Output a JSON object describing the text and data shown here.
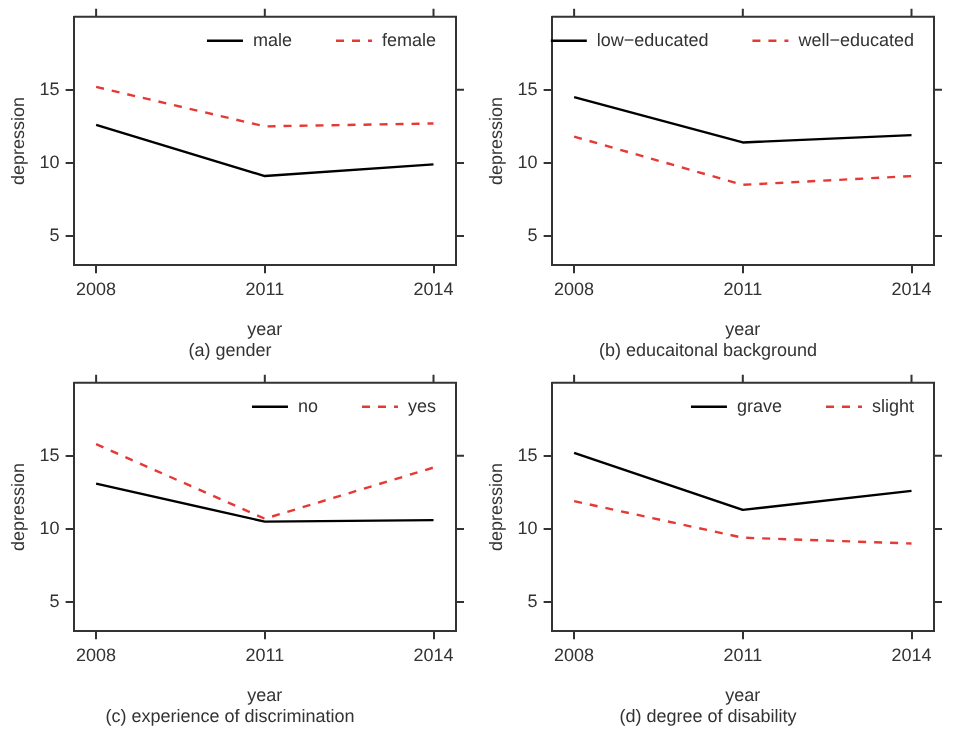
{
  "chart_data": [
    {
      "type": "line",
      "subtitle": "(a) gender",
      "xlabel": "year",
      "ylabel": "depression",
      "x": [
        2008,
        2011,
        2014
      ],
      "xlim": [
        2007.6,
        2014.4
      ],
      "xticks": [
        2008,
        2011,
        2014
      ],
      "ylim": [
        3,
        20
      ],
      "yticks": [
        5,
        10,
        15
      ],
      "legend": "top right",
      "grid": false,
      "series": [
        {
          "name": "male",
          "color": "#000000",
          "line_style": "solid",
          "values": [
            12.6,
            9.1,
            9.9
          ]
        },
        {
          "name": "female",
          "color": "#e53935",
          "line_style": "dashed",
          "values": [
            15.2,
            12.5,
            12.7
          ]
        }
      ]
    },
    {
      "type": "line",
      "subtitle": "(b) educaitonal background",
      "xlabel": "year",
      "ylabel": "depression",
      "x": [
        2008,
        2011,
        2014
      ],
      "xlim": [
        2007.6,
        2014.4
      ],
      "xticks": [
        2008,
        2011,
        2014
      ],
      "ylim": [
        3,
        20
      ],
      "yticks": [
        5,
        10,
        15
      ],
      "legend": "top right",
      "grid": false,
      "series": [
        {
          "name": "low−educated",
          "color": "#000000",
          "line_style": "solid",
          "values": [
            14.5,
            11.4,
            11.9
          ]
        },
        {
          "name": "well−educated",
          "color": "#e53935",
          "line_style": "dashed",
          "values": [
            11.8,
            8.5,
            9.1
          ]
        }
      ]
    },
    {
      "type": "line",
      "subtitle": "(c) experience of discrimination",
      "xlabel": "year",
      "ylabel": "depression",
      "x": [
        2008,
        2011,
        2014
      ],
      "xlim": [
        2007.6,
        2014.4
      ],
      "xticks": [
        2008,
        2011,
        2014
      ],
      "ylim": [
        3,
        20
      ],
      "yticks": [
        5,
        10,
        15
      ],
      "legend": "top right",
      "grid": false,
      "series": [
        {
          "name": "no",
          "color": "#000000",
          "line_style": "solid",
          "values": [
            13.1,
            10.5,
            10.6
          ]
        },
        {
          "name": "yes",
          "color": "#e53935",
          "line_style": "dashed",
          "values": [
            15.8,
            10.7,
            14.2
          ]
        }
      ]
    },
    {
      "type": "line",
      "subtitle": "(d) degree of disability",
      "xlabel": "year",
      "ylabel": "depression",
      "x": [
        2008,
        2011,
        2014
      ],
      "xlim": [
        2007.6,
        2014.4
      ],
      "xticks": [
        2008,
        2011,
        2014
      ],
      "ylim": [
        3,
        20
      ],
      "yticks": [
        5,
        10,
        15
      ],
      "legend": "top right",
      "grid": false,
      "series": [
        {
          "name": "grave",
          "color": "#000000",
          "line_style": "solid",
          "values": [
            15.2,
            11.3,
            12.6
          ]
        },
        {
          "name": "slight",
          "color": "#e53935",
          "line_style": "dashed",
          "values": [
            11.9,
            9.4,
            9.0
          ]
        }
      ]
    }
  ]
}
